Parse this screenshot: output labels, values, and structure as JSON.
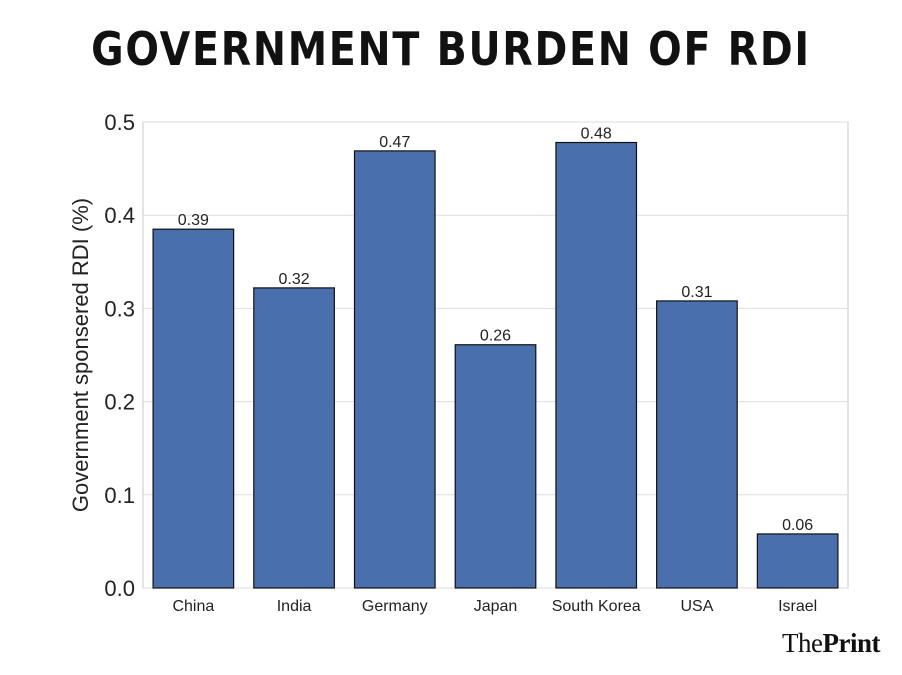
{
  "colors": {
    "bar": "#4a6fad",
    "bar_border": "#111111",
    "grid": "#dedede",
    "axis_border": "#c8c8c8"
  },
  "logo": {
    "the": "The",
    "print": "Print"
  },
  "chart_data": {
    "type": "bar",
    "title": "GOVERNMENT BURDEN OF RDI",
    "xlabel": "",
    "ylabel": "Government sponsered RDI (%)",
    "ylim": [
      0,
      0.5
    ],
    "yticks": [
      "0.0",
      "0.1",
      "0.2",
      "0.3",
      "0.4",
      "0.5"
    ],
    "grid": true,
    "categories": [
      "China",
      "India",
      "Germany",
      "Japan",
      "South Korea",
      "USA",
      "Israel"
    ],
    "values": [
      0.385,
      0.322,
      0.469,
      0.261,
      0.478,
      0.308,
      0.058
    ],
    "labels": [
      "0.39",
      "0.32",
      "0.47",
      "0.26",
      "0.48",
      "0.31",
      "0.06"
    ]
  }
}
